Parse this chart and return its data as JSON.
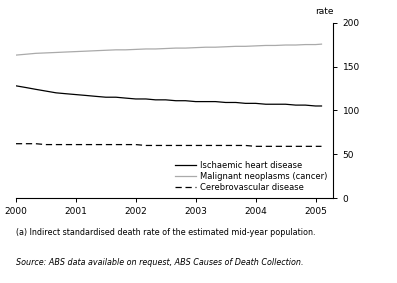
{
  "years": [
    2000,
    2000.17,
    2000.33,
    2000.5,
    2000.67,
    2000.83,
    2001,
    2001.17,
    2001.33,
    2001.5,
    2001.67,
    2001.83,
    2002,
    2002.17,
    2002.33,
    2002.5,
    2002.67,
    2002.83,
    2003,
    2003.17,
    2003.33,
    2003.5,
    2003.67,
    2003.83,
    2004,
    2004.17,
    2004.33,
    2004.5,
    2004.67,
    2004.83,
    2005,
    2005.1
  ],
  "ischaemic": [
    128,
    126,
    124,
    122,
    120,
    119,
    118,
    117,
    116,
    115,
    115,
    114,
    113,
    113,
    112,
    112,
    111,
    111,
    110,
    110,
    110,
    109,
    109,
    108,
    108,
    107,
    107,
    107,
    106,
    106,
    105,
    105
  ],
  "cancer": [
    163,
    164,
    165,
    165.5,
    166,
    166.5,
    167,
    167.5,
    168,
    168.5,
    169,
    169,
    169.5,
    170,
    170,
    170.5,
    171,
    171,
    171.5,
    172,
    172,
    172.5,
    173,
    173,
    173.5,
    174,
    174,
    174.5,
    174.5,
    175,
    175,
    175.5
  ],
  "cerebrovascular": [
    62,
    62,
    62,
    61,
    61,
    61,
    61,
    61,
    61,
    61,
    61,
    61,
    61,
    60,
    60,
    60,
    60,
    60,
    60,
    60,
    60,
    60,
    60,
    60,
    59,
    59,
    59,
    59,
    59,
    59,
    59,
    59
  ],
  "ischaemic_color": "#000000",
  "cancer_color": "#aaaaaa",
  "cerebrovascular_color": "#000000",
  "ylabel_right": "rate",
  "ylim": [
    0,
    200
  ],
  "yticks": [
    0,
    50,
    100,
    150,
    200
  ],
  "xlim": [
    2000,
    2005.3
  ],
  "xticks": [
    2000,
    2001,
    2002,
    2003,
    2004,
    2005
  ],
  "legend_ischaemic": "Ischaemic heart disease",
  "legend_cancer": "Malignant neoplasms (cancer)",
  "legend_cerebrovascular": "Cerebrovascular disease",
  "footnote_a": "(a) Indirect standardised death rate of the estimated mid-year population.",
  "footnote_source": "Source: ABS data available on request, ABS Causes of Death Collection.",
  "background_color": "#ffffff",
  "line_width": 0.9
}
